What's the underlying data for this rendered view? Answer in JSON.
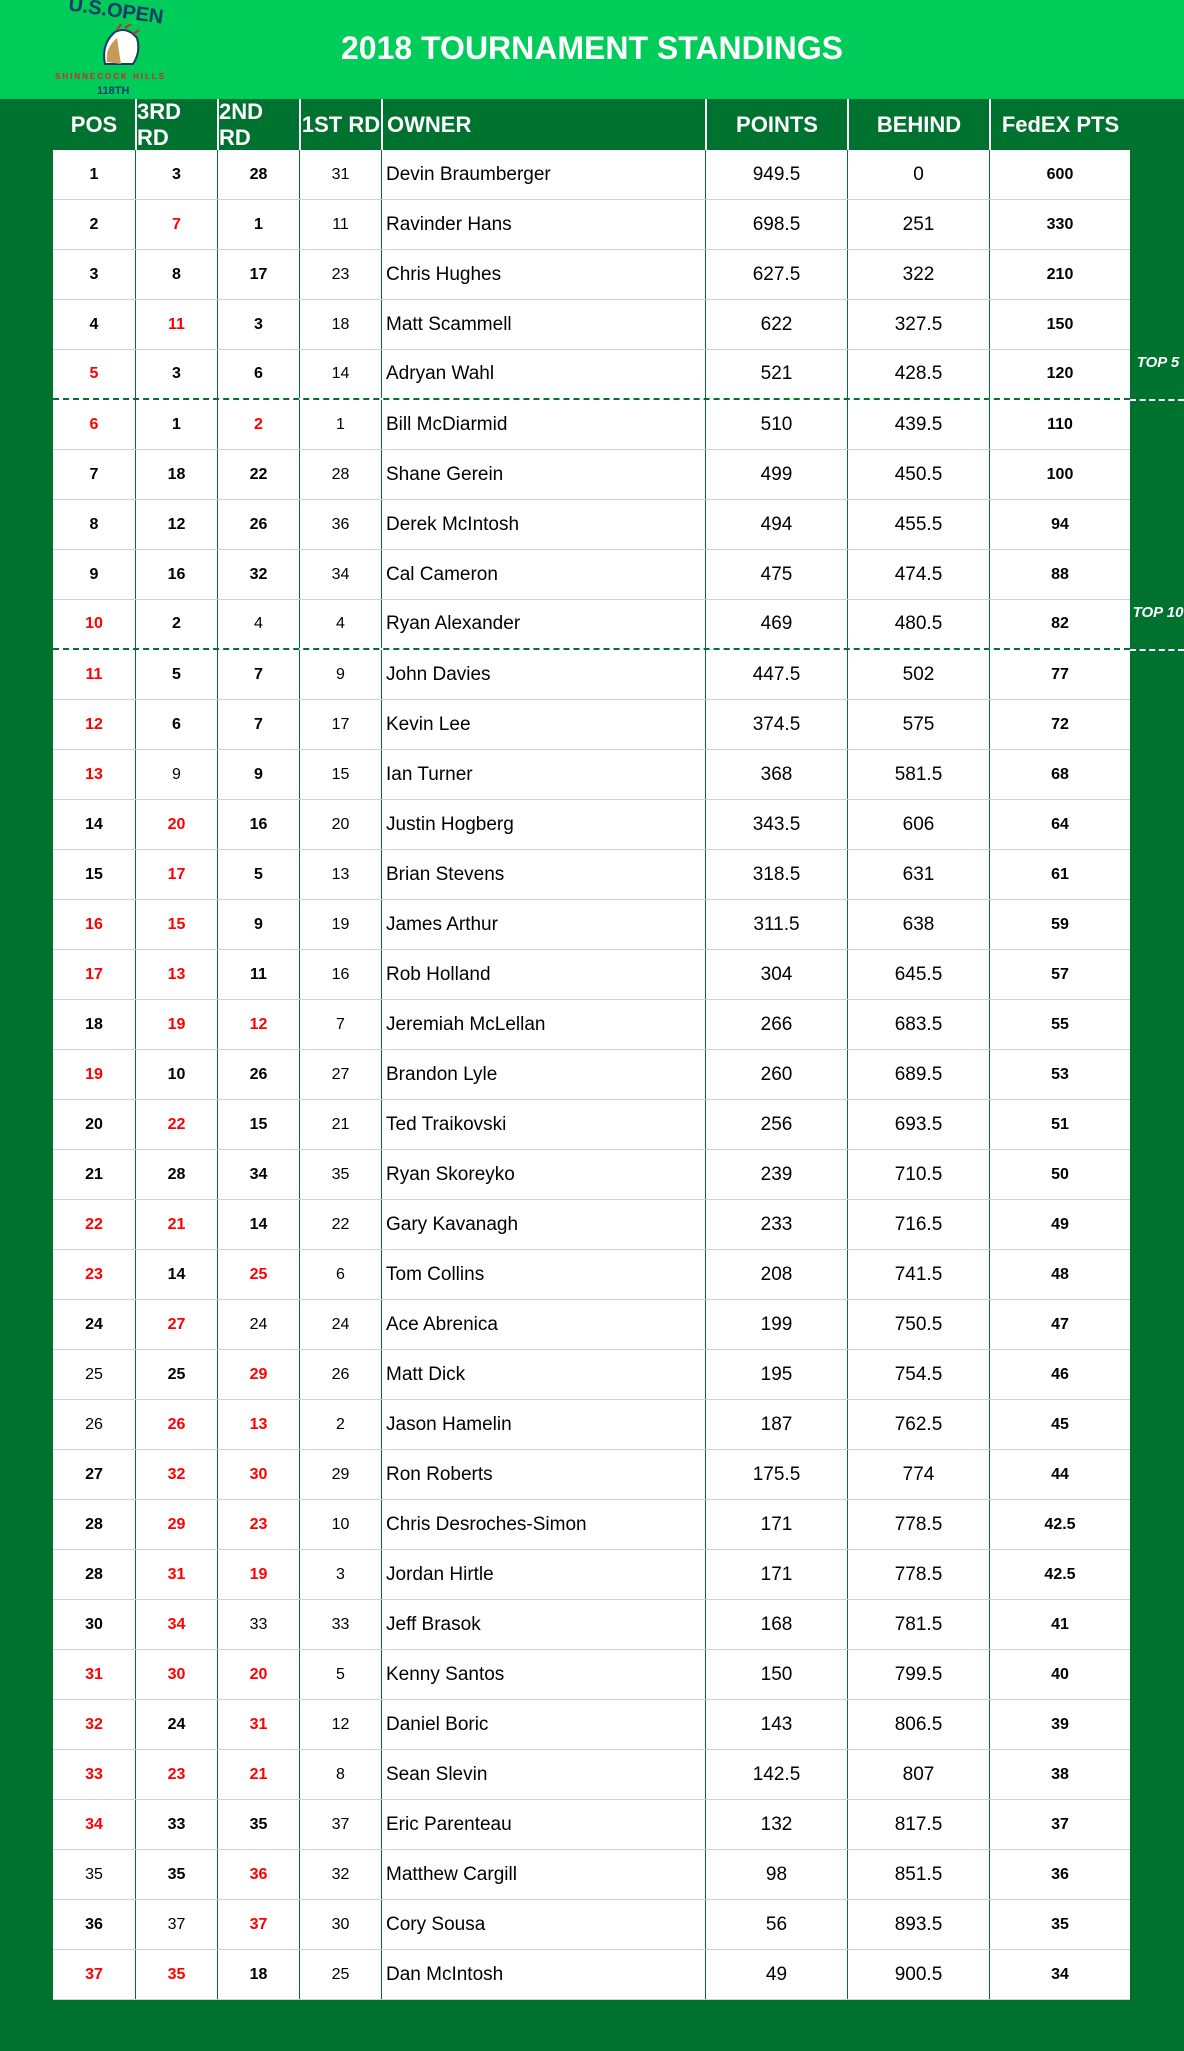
{
  "header": {
    "title": "2018 TOURNAMENT STANDINGS",
    "logo": {
      "line1": "U.S.OPEN",
      "line2": "SHINNECOCK HILLS",
      "line3": "118TH"
    }
  },
  "colors": {
    "header_bg": "#00cc5a",
    "frame_bg": "#00722f",
    "highlight": "#ff0000"
  },
  "columns": [
    "POS",
    "3RD RD",
    "2ND RD",
    "1ST RD",
    "OWNER",
    "POINTS",
    "BEHIND",
    "FedEX PTS"
  ],
  "markers": {
    "top5": "TOP 5",
    "top10": "TOP 10"
  },
  "rows": [
    [
      "1",
      "3",
      "28",
      "31",
      "Devin Braumberger",
      "949.5",
      "0",
      "600",
      "bbb"
    ],
    [
      "2",
      "7",
      "1",
      "11",
      "Ravinder Hans",
      "698.5",
      "251",
      "330",
      "brb"
    ],
    [
      "3",
      "8",
      "17",
      "23",
      "Chris Hughes",
      "627.5",
      "322",
      "210",
      "bbb"
    ],
    [
      "4",
      "11",
      "3",
      "18",
      "Matt Scammell",
      "622",
      "327.5",
      "150",
      "brb"
    ],
    [
      "5",
      "3",
      "6",
      "14",
      "Adryan Wahl",
      "521",
      "428.5",
      "120",
      "rbb"
    ],
    [
      "6",
      "1",
      "2",
      "1",
      "Bill McDiarmid",
      "510",
      "439.5",
      "110",
      "rbr"
    ],
    [
      "7",
      "18",
      "22",
      "28",
      "Shane Gerein",
      "499",
      "450.5",
      "100",
      "bbb"
    ],
    [
      "8",
      "12",
      "26",
      "36",
      "Derek McIntosh",
      "494",
      "455.5",
      "94",
      "bbb"
    ],
    [
      "9",
      "16",
      "32",
      "34",
      "Cal Cameron",
      "475",
      "474.5",
      "88",
      "bbb"
    ],
    [
      "10",
      "2",
      "4",
      "4",
      "Ryan Alexander",
      "469",
      "480.5",
      "82",
      "rbn"
    ],
    [
      "11",
      "5",
      "7",
      "9",
      "John Davies",
      "447.5",
      "502",
      "77",
      "rbb"
    ],
    [
      "12",
      "6",
      "7",
      "17",
      "Kevin Lee",
      "374.5",
      "575",
      "72",
      "rbb"
    ],
    [
      "13",
      "9",
      "9",
      "15",
      "Ian Turner",
      "368",
      "581.5",
      "68",
      "rnb"
    ],
    [
      "14",
      "20",
      "16",
      "20",
      "Justin Hogberg",
      "343.5",
      "606",
      "64",
      "brb"
    ],
    [
      "15",
      "17",
      "5",
      "13",
      "Brian Stevens",
      "318.5",
      "631",
      "61",
      "brb"
    ],
    [
      "16",
      "15",
      "9",
      "19",
      "James Arthur",
      "311.5",
      "638",
      "59",
      "rrb"
    ],
    [
      "17",
      "13",
      "11",
      "16",
      "Rob Holland",
      "304",
      "645.5",
      "57",
      "rrb"
    ],
    [
      "18",
      "19",
      "12",
      "7",
      "Jeremiah McLellan",
      "266",
      "683.5",
      "55",
      "brr"
    ],
    [
      "19",
      "10",
      "26",
      "27",
      "Brandon Lyle",
      "260",
      "689.5",
      "53",
      "rbb"
    ],
    [
      "20",
      "22",
      "15",
      "21",
      "Ted Traikovski",
      "256",
      "693.5",
      "51",
      "brb"
    ],
    [
      "21",
      "28",
      "34",
      "35",
      "Ryan Skoreyko",
      "239",
      "710.5",
      "50",
      "bbb"
    ],
    [
      "22",
      "21",
      "14",
      "22",
      "Gary Kavanagh",
      "233",
      "716.5",
      "49",
      "rrb"
    ],
    [
      "23",
      "14",
      "25",
      "6",
      "Tom Collins",
      "208",
      "741.5",
      "48",
      "rbr"
    ],
    [
      "24",
      "27",
      "24",
      "24",
      "Ace Abrenica",
      "199",
      "750.5",
      "47",
      "brn"
    ],
    [
      "25",
      "25",
      "29",
      "26",
      "Matt Dick",
      "195",
      "754.5",
      "46",
      "nbr"
    ],
    [
      "26",
      "26",
      "13",
      "2",
      "Jason Hamelin",
      "187",
      "762.5",
      "45",
      "nrr"
    ],
    [
      "27",
      "32",
      "30",
      "29",
      "Ron Roberts",
      "175.5",
      "774",
      "44",
      "brr"
    ],
    [
      "28",
      "29",
      "23",
      "10",
      "Chris Desroches-Simon",
      "171",
      "778.5",
      "42.5",
      "brr"
    ],
    [
      "28",
      "31",
      "19",
      "3",
      "Jordan Hirtle",
      "171",
      "778.5",
      "42.5",
      "brr"
    ],
    [
      "30",
      "34",
      "33",
      "33",
      "Jeff Brasok",
      "168",
      "781.5",
      "41",
      "brn"
    ],
    [
      "31",
      "30",
      "20",
      "5",
      "Kenny Santos",
      "150",
      "799.5",
      "40",
      "rrr"
    ],
    [
      "32",
      "24",
      "31",
      "12",
      "Daniel Boric",
      "143",
      "806.5",
      "39",
      "rbr"
    ],
    [
      "33",
      "23",
      "21",
      "8",
      "Sean Slevin",
      "142.5",
      "807",
      "38",
      "rrr"
    ],
    [
      "34",
      "33",
      "35",
      "37",
      "Eric Parenteau",
      "132",
      "817.5",
      "37",
      "rbb"
    ],
    [
      "35",
      "35",
      "36",
      "32",
      "Matthew Cargill",
      "98",
      "851.5",
      "36",
      "nbr"
    ],
    [
      "36",
      "37",
      "37",
      "30",
      "Cory Sousa",
      "56",
      "893.5",
      "35",
      "bnr"
    ],
    [
      "37",
      "35",
      "18",
      "25",
      "Dan McIntosh",
      "49",
      "900.5",
      "34",
      "rrb"
    ]
  ]
}
